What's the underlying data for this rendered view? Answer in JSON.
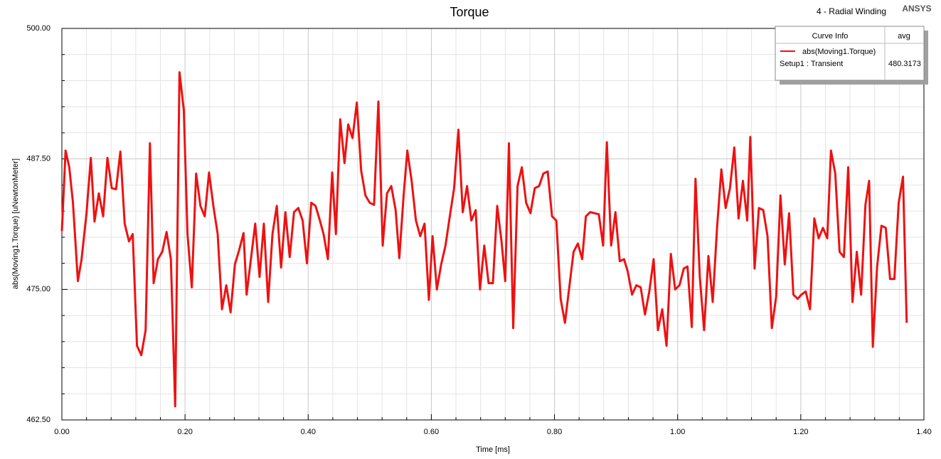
{
  "chart_data": {
    "type": "line",
    "title": "Torque",
    "subtitle": "4 - Radial Winding",
    "brand": "ANSYS",
    "x_label": "Time [ms]",
    "y_label": "abs(Moving1.Torque) [uNewtonMeter]",
    "xlim": [
      0,
      1.4
    ],
    "ylim": [
      462.5,
      500
    ],
    "xticks": [
      {
        "value": 0,
        "label": "0.00"
      },
      {
        "value": 0.2,
        "label": "0.20"
      },
      {
        "value": 0.4,
        "label": "0.40"
      },
      {
        "value": 0.6,
        "label": "0.60"
      },
      {
        "value": 0.8,
        "label": "0.80"
      },
      {
        "value": 1.0,
        "label": "1.00"
      },
      {
        "value": 1.2,
        "label": "1.20"
      },
      {
        "value": 1.4,
        "label": "1.40"
      }
    ],
    "yticks": [
      {
        "value": 462.5,
        "label": "462.50"
      },
      {
        "value": 475,
        "label": "475.00"
      },
      {
        "value": 487.5,
        "label": "487.50"
      },
      {
        "value": 500,
        "label": "500.00"
      }
    ],
    "grid": true,
    "legend_table": {
      "headers": [
        "Curve Info",
        "avg"
      ],
      "setup": "Setup1 : Transient",
      "avg": 480.3173
    },
    "x": [
      0,
      0.006,
      0.012,
      0.018,
      0.026,
      0.032,
      0.04,
      0.047,
      0.053,
      0.06,
      0.067,
      0.074,
      0.081,
      0.088,
      0.095,
      0.102,
      0.109,
      0.115,
      0.122,
      0.129,
      0.136,
      0.143,
      0.149,
      0.156,
      0.163,
      0.17,
      0.177,
      0.184,
      0.191,
      0.198,
      0.204,
      0.211,
      0.218,
      0.225,
      0.232,
      0.239,
      0.246,
      0.253,
      0.26,
      0.267,
      0.274,
      0.281,
      0.288,
      0.295,
      0.3,
      0.307,
      0.314,
      0.321,
      0.328,
      0.335,
      0.342,
      0.349,
      0.356,
      0.363,
      0.37,
      0.377,
      0.384,
      0.391,
      0.398,
      0.405,
      0.412,
      0.419,
      0.425,
      0.432,
      0.439,
      0.445,
      0.452,
      0.459,
      0.465,
      0.472,
      0.479,
      0.486,
      0.493,
      0.5,
      0.507,
      0.514,
      0.521,
      0.528,
      0.535,
      0.542,
      0.548,
      0.555,
      0.561,
      0.568,
      0.575,
      0.582,
      0.589,
      0.596,
      0.602,
      0.609,
      0.616,
      0.623,
      0.63,
      0.637,
      0.644,
      0.651,
      0.658,
      0.665,
      0.672,
      0.679,
      0.686,
      0.693,
      0.7,
      0.707,
      0.714,
      0.72,
      0.726,
      0.733,
      0.74,
      0.747,
      0.754,
      0.761,
      0.768,
      0.775,
      0.782,
      0.789,
      0.796,
      0.803,
      0.81,
      0.817,
      0.824,
      0.831,
      0.838,
      0.845,
      0.851,
      0.858,
      0.865,
      0.872,
      0.879,
      0.885,
      0.892,
      0.899,
      0.906,
      0.913,
      0.919,
      0.926,
      0.933,
      0.94,
      0.947,
      0.954,
      0.961,
      0.968,
      0.975,
      0.982,
      0.989,
      0.996,
      1.003,
      1.01,
      1.016,
      1.023,
      1.029,
      1.036,
      1.043,
      1.05,
      1.057,
      1.064,
      1.071,
      1.078,
      1.085,
      1.092,
      1.099,
      1.106,
      1.113,
      1.118,
      1.125,
      1.132,
      1.139,
      1.146,
      1.153,
      1.16,
      1.167,
      1.174,
      1.181,
      1.188,
      1.195,
      1.201,
      1.208,
      1.215,
      1.222,
      1.229,
      1.236,
      1.243,
      1.249,
      1.256,
      1.263,
      1.27,
      1.277,
      1.284,
      1.291,
      1.298,
      1.305,
      1.311,
      1.317,
      1.324,
      1.331,
      1.338,
      1.345,
      1.352,
      1.359,
      1.366,
      1.372
    ],
    "series": [
      {
        "name": "abs(Moving1.Torque)",
        "color": "#ee1111",
        "values": [
          480.6,
          488.3,
          486.7,
          483.3,
          475.8,
          477.9,
          482.3,
          487.6,
          481.5,
          484.2,
          482.0,
          487.6,
          484.7,
          484.6,
          488.2,
          481.3,
          479.6,
          480.3,
          469.6,
          468.7,
          471.1,
          489.0,
          475.6,
          477.9,
          478.6,
          480.5,
          477.9,
          463.8,
          495.8,
          492.2,
          480.3,
          475.2,
          486.1,
          483.0,
          482.0,
          486.2,
          483.0,
          480.3,
          473.1,
          475.4,
          472.8,
          477.4,
          478.8,
          480.4,
          474.5,
          477.9,
          481.3,
          476.2,
          481.3,
          473.8,
          480.3,
          483.0,
          477.1,
          482.4,
          478.1,
          482.4,
          482.8,
          481.6,
          477.5,
          483.3,
          483.0,
          481.6,
          480.3,
          477.9,
          486.2,
          480.3,
          491.3,
          487.1,
          490.8,
          489.5,
          492.9,
          486.4,
          484.0,
          483.3,
          483.1,
          493.0,
          479.2,
          484.2,
          484.9,
          482.6,
          478.0,
          484.0,
          488.3,
          485.4,
          481.6,
          480.1,
          481.3,
          474.0,
          480.1,
          475.0,
          477.4,
          479.2,
          482.0,
          484.7,
          490.3,
          482.4,
          484.9,
          481.6,
          482.6,
          475.0,
          479.2,
          475.6,
          475.6,
          483.0,
          479.6,
          475.8,
          489.0,
          471.3,
          484.9,
          486.7,
          483.3,
          482.3,
          484.7,
          484.9,
          486.1,
          486.3,
          482.0,
          481.6,
          474.1,
          471.8,
          475.2,
          478.6,
          479.4,
          477.9,
          482.0,
          482.4,
          482.3,
          482.2,
          479.2,
          489.1,
          479.2,
          482.4,
          477.7,
          477.9,
          476.7,
          474.5,
          475.4,
          475.2,
          472.6,
          474.8,
          477.9,
          471.1,
          473.1,
          469.6,
          478.4,
          475.0,
          475.4,
          477.0,
          477.2,
          471.4,
          485.6,
          476.2,
          471.1,
          478.2,
          473.8,
          480.9,
          486.5,
          482.8,
          484.7,
          488.6,
          481.8,
          485.4,
          481.6,
          489.6,
          477.0,
          482.8,
          482.6,
          480.1,
          471.3,
          474.3,
          484.0,
          477.4,
          482.3,
          474.5,
          474.1,
          474.5,
          474.8,
          473.1,
          481.8,
          479.9,
          480.9,
          479.9,
          488.3,
          486.1,
          478.6,
          478.1,
          486.7,
          473.8,
          478.6,
          474.5,
          483.1,
          485.4,
          469.5,
          477.2,
          481.1,
          480.9,
          476.0,
          476.0,
          483.3,
          485.8,
          471.8
        ]
      }
    ]
  }
}
